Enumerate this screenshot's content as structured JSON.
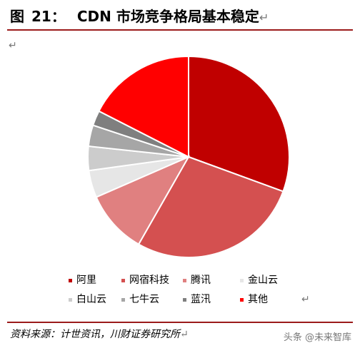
{
  "figure": {
    "label": "图",
    "number": "21：",
    "title": "CDN 市场竞争格局基本稳定",
    "para_mark": "↵"
  },
  "chart_data": {
    "type": "pie",
    "title": "CDN 市场竞争格局基本稳定",
    "start_angle_deg": 0,
    "direction": "clockwise",
    "slices": [
      {
        "name": "阿里",
        "value": 31.5,
        "color": "#c00000"
      },
      {
        "name": "网宿科技",
        "value": 28.5,
        "color": "#d45050"
      },
      {
        "name": "腾讯",
        "value": 10.5,
        "color": "#e08080"
      },
      {
        "name": "金山云",
        "value": 4.5,
        "color": "#e6e6e6"
      },
      {
        "name": "白山云",
        "value": 4.0,
        "color": "#cccccc"
      },
      {
        "name": "七牛云",
        "value": 3.5,
        "color": "#a6a6a6"
      },
      {
        "name": "蓝汛",
        "value": 2.5,
        "color": "#7f7f7f"
      },
      {
        "name": "其他",
        "value": 18.0,
        "color": "#ff0000"
      }
    ],
    "legend_placement": "bottom"
  },
  "legend": {
    "end_mark": "↵"
  },
  "source": {
    "text": "资料来源：计世资讯，川财证券研究所",
    "mark": "↵"
  },
  "watermark": {
    "text": "头条 @未来智库"
  }
}
